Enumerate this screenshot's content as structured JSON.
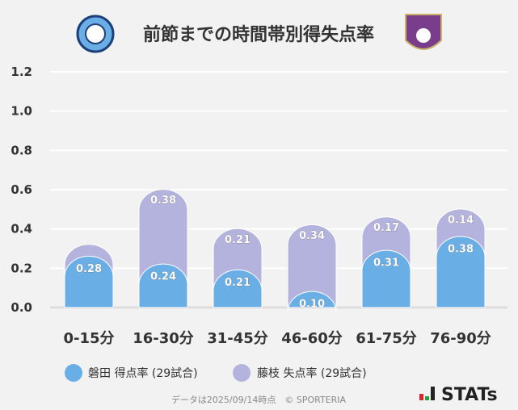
{
  "chart_data": {
    "type": "bar",
    "stacked": true,
    "title": "前節までの時間帯別得失点率",
    "categories": [
      "0-15分",
      "16-30分",
      "31-45分",
      "46-60分",
      "61-75分",
      "76-90分"
    ],
    "series": [
      {
        "name": "磐田 得点率 (29試合)",
        "color": "#6aaee6",
        "values": [
          0.28,
          0.24,
          0.21,
          0.1,
          0.31,
          0.38
        ],
        "labels": [
          "0.28",
          "0.24",
          "0.21",
          "0.10",
          "0.31",
          "0.38"
        ]
      },
      {
        "name": "藤枝 失点率 (29試合)",
        "color": "#b3b3de",
        "values": [
          0.06,
          0.38,
          0.21,
          0.34,
          0.17,
          0.14
        ],
        "labels": [
          "",
          "0.38",
          "0.21",
          "0.34",
          "0.17",
          "0.14"
        ]
      }
    ],
    "yticks": [
      "0.0",
      "0.2",
      "0.4",
      "0.6",
      "0.8",
      "1.0",
      "1.2"
    ],
    "ylim": [
      0,
      1.2
    ],
    "grid": true,
    "legend": "bottom"
  },
  "logos": {
    "home": "Jubilo Iwata emblem",
    "away": "FUJIEDA MYFC"
  },
  "footer": {
    "note": "データは2025/09/14時点　© SPORTERIA",
    "brand": "STATs"
  }
}
